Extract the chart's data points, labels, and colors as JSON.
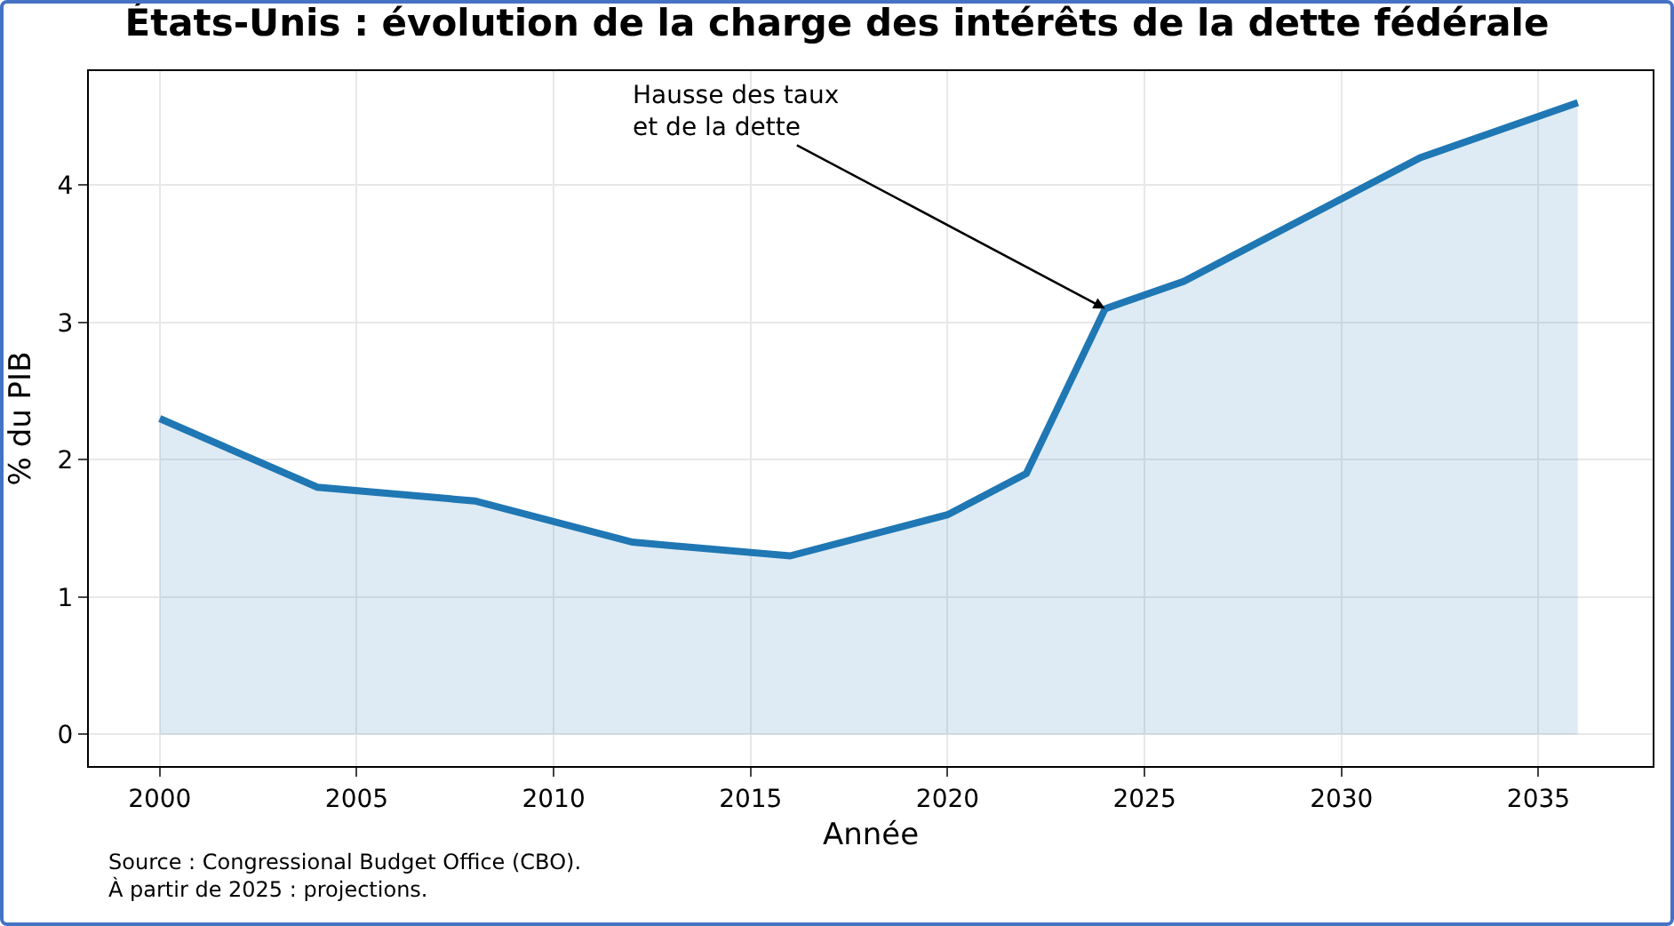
{
  "chart_data": {
    "type": "area",
    "title": "États-Unis : évolution de la charge des intérêts de la dette fédérale",
    "xlabel": "Année",
    "ylabel": "% du PIB",
    "x": [
      2000,
      2004,
      2008,
      2012,
      2016,
      2020,
      2022,
      2024,
      2026,
      2032,
      2036
    ],
    "series": [
      {
        "color": "#1f77b4",
        "values": [
          2.3,
          1.8,
          1.7,
          1.4,
          1.3,
          1.6,
          1.9,
          3.1,
          3.3,
          4.2,
          4.6
        ]
      }
    ],
    "xlim": [
      1998.2,
      2037.9
    ],
    "xticks": [
      2000,
      2005,
      2010,
      2015,
      2020,
      2025,
      2030,
      2035
    ],
    "ylim": [
      -0.23,
      4.83
    ],
    "yticks": [
      0,
      1,
      2,
      3,
      4
    ],
    "grid": true,
    "annotations": [
      {
        "text": "Hausse des taux\net de la dette",
        "x": 2024,
        "y": 3.1
      },
      "Source : Congressional Budget Office (CBO).\nÀ partir de 2025 : projections."
    ]
  }
}
